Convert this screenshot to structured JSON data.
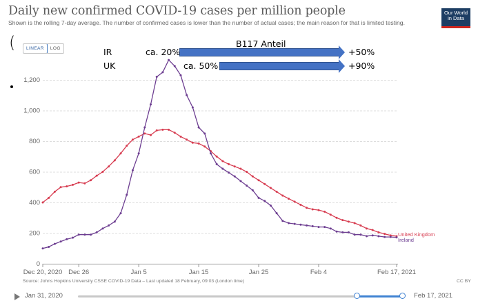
{
  "header": {
    "title": "Daily new confirmed COVID-19 cases per million people",
    "subtitle": "Shown is the rolling 7-day average. The number of confirmed cases is lower than the number of actual cases; the main reason for that is limited testing.",
    "logo_line1": "Our World",
    "logo_line2": "in Data"
  },
  "controls": {
    "scale_options": [
      "LINEAR",
      "LOG"
    ],
    "selected_scale": "LINEAR",
    "paren_mark": "(",
    "bullet_mark": "•"
  },
  "annotations": {
    "ir_label": "IR",
    "ir_share": "ca. 20%",
    "ir_result": "+50%",
    "uk_label": "UK",
    "uk_share": "ca. 50%",
    "uk_result": "+90%",
    "arrow_title": "B117 Anteil",
    "arrow_color": "#4472c4"
  },
  "footer": {
    "source": "Source: Johns Hopkins University CSSE COVID-19 Data – Last updated 18 February, 09:03 (London time)",
    "license": "CC BY"
  },
  "timeline": {
    "start_label": "Jan 31, 2020",
    "end_label": "Feb 17, 2021",
    "selected_start_fraction": 0.86,
    "selected_end_fraction": 1.0
  },
  "chart_data": {
    "type": "line",
    "title": "Daily new confirmed COVID-19 cases per million people",
    "xlabel": "",
    "ylabel": "",
    "x_start": "2020-12-20",
    "x_end": "2021-02-17",
    "x_tick_labels": [
      "Dec 20, 2020",
      "Dec 26",
      "Jan 5",
      "Jan 15",
      "Jan 25",
      "Feb 4",
      "Feb 17, 2021"
    ],
    "x_tick_days": [
      0,
      6,
      16,
      26,
      36,
      46,
      59
    ],
    "y_ticks": [
      0,
      200,
      400,
      600,
      800,
      1000,
      1200
    ],
    "y_tick_labels": [
      "0",
      "200",
      "400",
      "600",
      "800",
      "1,000",
      "1,200"
    ],
    "ylim": [
      0,
      1300
    ],
    "grid": true,
    "legend_placement": "end-of-line labels (right)",
    "series": [
      {
        "name": "United Kingdom",
        "color": "#d73c50",
        "values": [
          400,
          430,
          470,
          500,
          505,
          515,
          530,
          525,
          545,
          575,
          600,
          635,
          675,
          720,
          770,
          810,
          830,
          850,
          840,
          870,
          875,
          875,
          855,
          830,
          810,
          790,
          785,
          765,
          735,
          700,
          670,
          650,
          635,
          620,
          600,
          570,
          545,
          520,
          495,
          470,
          445,
          425,
          405,
          385,
          365,
          355,
          350,
          340,
          320,
          300,
          285,
          275,
          265,
          250,
          230,
          220,
          205,
          195,
          185,
          180
        ]
      },
      {
        "name": "Ireland",
        "color": "#6d3e91",
        "values": [
          100,
          110,
          130,
          145,
          160,
          170,
          190,
          190,
          190,
          205,
          230,
          250,
          275,
          330,
          450,
          610,
          720,
          890,
          1040,
          1220,
          1250,
          1330,
          1290,
          1230,
          1100,
          1020,
          890,
          850,
          720,
          650,
          620,
          595,
          570,
          540,
          510,
          480,
          430,
          410,
          380,
          330,
          280,
          265,
          260,
          255,
          250,
          245,
          240,
          240,
          230,
          210,
          205,
          205,
          190,
          190,
          180,
          185,
          180,
          175,
          175,
          172
        ]
      }
    ]
  }
}
